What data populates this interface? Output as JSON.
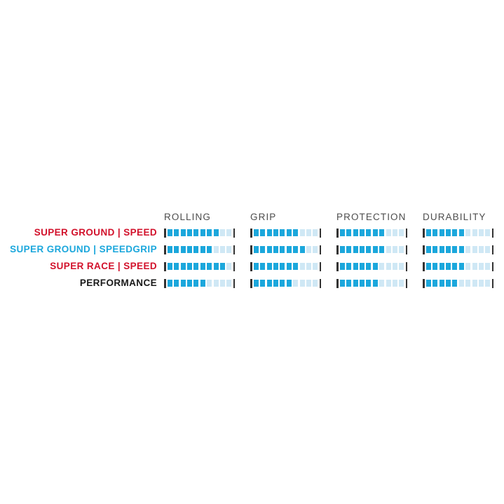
{
  "chart_data": {
    "type": "bar",
    "title": "",
    "categories": [
      "ROLLING",
      "GRIP",
      "PROTECTION",
      "DURABILITY"
    ],
    "scale_max": 10,
    "grid": false,
    "legend_position": "left-row-labels",
    "series": [
      {
        "name": "SUPER GROUND | SPEED",
        "label_color": "#d2112b",
        "values": [
          8,
          7,
          7,
          6
        ]
      },
      {
        "name": "SUPER GROUND | SPEEDGRIP",
        "label_color": "#1ba7dc",
        "values": [
          7,
          8,
          7,
          6
        ]
      },
      {
        "name": "SUPER RACE | SPEED",
        "label_color": "#d2112b",
        "values": [
          9,
          7,
          6,
          6
        ]
      },
      {
        "name": "PERFORMANCE",
        "label_color": "#1a1a1a",
        "values": [
          6,
          6,
          6,
          5
        ]
      }
    ]
  },
  "colors": {
    "background": "#ffffff",
    "bar_filled": "#1ba7dc",
    "bar_empty": "#cfe8f5",
    "end_tick": "#333333",
    "header_text": "#4d4d4d"
  }
}
